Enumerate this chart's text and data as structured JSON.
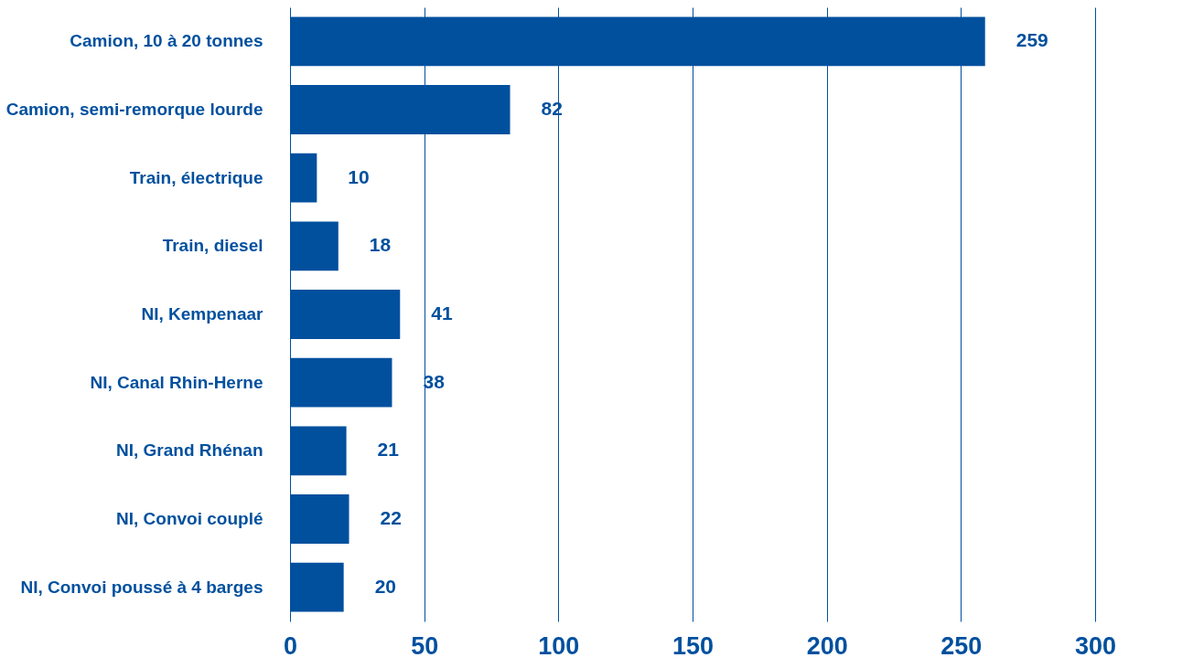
{
  "chart_data": {
    "type": "bar",
    "orientation": "horizontal",
    "categories": [
      "Camion, 10 à 20 tonnes",
      "Camion, semi-remorque lourde",
      "Train, électrique",
      "Train, diesel",
      "NI, Kempenaar",
      "NI, Canal Rhin-Herne",
      "NI, Grand Rhénan",
      "NI, Convoi couplé",
      "NI, Convoi poussé à 4 barges"
    ],
    "values": [
      259,
      82,
      10,
      18,
      41,
      38,
      21,
      22,
      20
    ],
    "color": "#00509e",
    "xlim": [
      0,
      300
    ],
    "xticks": [
      0,
      50,
      100,
      150,
      200,
      250,
      300
    ],
    "grid": "x",
    "data_labels": true
  }
}
